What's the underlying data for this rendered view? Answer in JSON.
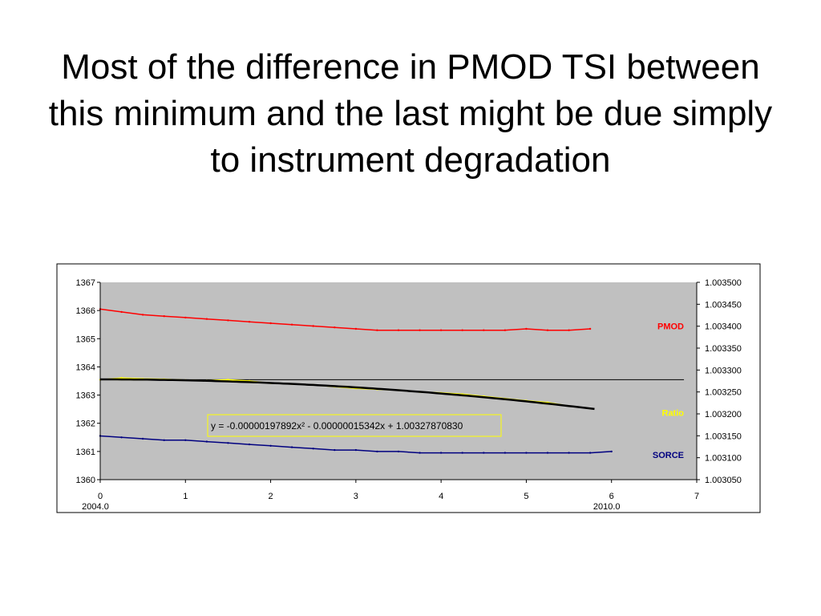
{
  "slide": {
    "title": "Most of the difference in PMOD TSI between this minimum and the last might be due simply to instrument degradation"
  },
  "chart_data": {
    "type": "line",
    "title": "",
    "xlabel": "",
    "ylabel": "",
    "xlim": [
      0,
      7
    ],
    "ylim_left": [
      1360,
      1367
    ],
    "ylim_right": [
      1.00305,
      1.0035
    ],
    "x_ticks": [
      "0",
      "1",
      "2",
      "3",
      "4",
      "5",
      "6",
      "7"
    ],
    "x_date_labels": [
      {
        "x": 0,
        "label": "2004.0"
      },
      {
        "x": 6,
        "label": "2010.0"
      }
    ],
    "y_ticks_left": [
      "1360",
      "1361",
      "1362",
      "1363",
      "1364",
      "1365",
      "1366",
      "1367"
    ],
    "y_ticks_right": [
      "1.003050",
      "1.003100",
      "1.003150",
      "1.003200",
      "1.003250",
      "1.003300",
      "1.003350",
      "1.003400",
      "1.003450",
      "1.003500"
    ],
    "grid": false,
    "plot_background": "#c0c0c0",
    "legend_placement": "right",
    "series": [
      {
        "name": "PMOD",
        "axis": "left",
        "color": "#ff0000",
        "x": [
          0.0,
          0.25,
          0.5,
          0.75,
          1.0,
          1.25,
          1.5,
          1.75,
          2.0,
          2.25,
          2.5,
          2.75,
          3.0,
          3.25,
          3.5,
          3.75,
          4.0,
          4.25,
          4.5,
          4.75,
          5.0,
          5.25,
          5.5,
          5.75
        ],
        "values": [
          1366.05,
          1365.95,
          1365.85,
          1365.8,
          1365.75,
          1365.7,
          1365.65,
          1365.6,
          1365.55,
          1365.5,
          1365.45,
          1365.4,
          1365.35,
          1365.3,
          1365.3,
          1365.3,
          1365.3,
          1365.3,
          1365.3,
          1365.3,
          1365.35,
          1365.3,
          1365.3,
          1365.35
        ]
      },
      {
        "name": "Ratio",
        "axis": "right",
        "color": "#ffff00",
        "x": [
          0.0,
          0.25,
          0.5,
          0.75,
          1.0,
          1.25,
          1.5,
          1.75,
          2.0,
          2.25,
          2.5,
          2.75,
          3.0,
          3.25,
          3.5,
          3.75,
          4.0,
          4.25,
          4.5,
          4.75,
          5.0,
          5.25,
          5.5,
          5.75
        ],
        "values": [
          1.003278,
          1.003282,
          1.00328,
          1.003279,
          1.003277,
          1.003276,
          1.003278,
          1.003275,
          1.00327,
          1.003268,
          1.003266,
          1.003262,
          1.003258,
          1.003256,
          1.003254,
          1.00325,
          1.003248,
          1.003245,
          1.00324,
          1.003235,
          1.00323,
          1.003226,
          1.003218,
          1.003212
        ]
      },
      {
        "name": "SORCE",
        "axis": "left",
        "color": "#000080",
        "x": [
          0.0,
          0.25,
          0.5,
          0.75,
          1.0,
          1.25,
          1.5,
          1.75,
          2.0,
          2.25,
          2.5,
          2.75,
          3.0,
          3.25,
          3.5,
          3.75,
          4.0,
          4.25,
          4.5,
          4.75,
          5.0,
          5.25,
          5.5,
          5.75,
          6.0
        ],
        "values": [
          1361.55,
          1361.5,
          1361.45,
          1361.4,
          1361.4,
          1361.35,
          1361.3,
          1361.25,
          1361.2,
          1361.15,
          1361.1,
          1361.05,
          1361.05,
          1361.0,
          1361.0,
          1360.95,
          1360.95,
          1360.95,
          1360.95,
          1360.95,
          1360.95,
          1360.95,
          1360.95,
          1360.95,
          1361.0
        ]
      }
    ],
    "fit_line": {
      "axis": "right",
      "equation": "y = -0.00000197892x² - 0.00000015342x + 1.00327870830",
      "coefficients": [
        -1.97892e-06,
        -1.5342e-07,
        1.0032787083
      ],
      "x_range": [
        0,
        5.8
      ],
      "color": "#000000"
    },
    "reference_line": {
      "axis": "right",
      "value": 1.003278,
      "x_range": [
        0,
        6.85
      ],
      "color": "#000000"
    },
    "legend_labels": [
      {
        "name": "PMOD",
        "color": "#ff0000"
      },
      {
        "name": "Ratio",
        "color": "#ffff00"
      },
      {
        "name": "SORCE",
        "color": "#000080"
      }
    ],
    "equation_box_border": "#ffff00"
  }
}
